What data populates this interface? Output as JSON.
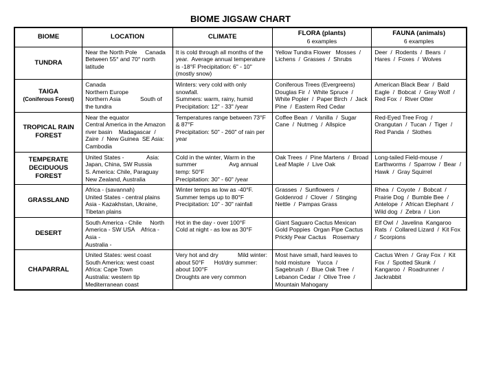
{
  "title": "BIOME JIGSAW CHART",
  "headers": {
    "biome": "BIOME",
    "location": "LOCATION",
    "climate": "CLIMATE",
    "flora": "FLORA (plants)",
    "flora_sub": "6 examples",
    "fauna": "FAUNA (animals)",
    "fauna_sub": "6 examples"
  },
  "rows": [
    {
      "biome": "TUNDRA",
      "biome_sub": "",
      "location": "Near the North Pole     Canada       Between 55° and 70° north latitude",
      "climate": "It is cold through all months of the year.  Average annual temperature is -18°F Precipitation: 6\" - 10\" (mostly snow)",
      "flora": "Yellow Tundra Flower   Mosses  /  Lichens  /  Grasses  /  Shrubs",
      "fauna": "Deer  /  Rodents  /  Bears  /  Hares  /  Foxes  /  Wolves"
    },
    {
      "biome": "TAIGA",
      "biome_sub": "(Coniferous Forest)",
      "location": "Canada\nNorthern Europe\nNorthern Asia            South of the tundra",
      "climate": "Winters: very cold with only snowfall.\nSummers: warm, rainy, humid\nPrecipitation: 12\" - 33\" /year",
      "flora": "Coniferous Trees (Evergreens) Douglas Fir  /  White Spruce  /  White Popler  /  Paper Birch  /  Jack Pine  /  Eastern Red Cedar",
      "fauna": "American Black Bear  /  Bald Eagle  /  Bobcat  /  Gray Wolf  /  Red Fox  /  River Otter"
    },
    {
      "biome": "TROPICAL RAIN FOREST",
      "biome_sub": "",
      "location": "Near the equator\nCentral America in the Amazon river basin    Madagascar  /  Zaire  /  New Guinea  SE Asia: Cambodia",
      "climate": "Temperatures range between 73°F & 87°F\nPrecipitation: 50\" - 260\" of rain per year",
      "flora": "Coffee Bean  /  Vanilla  /  Sugar Cane  /  Nutmeg  /  Allspice",
      "fauna": "Red-Eyed Tree Frog  /  Orangutan  /  Tucan  /  Tiger  /  Red Panda  /  Slothes"
    },
    {
      "biome": "TEMPERATE DECIDUOUS FOREST",
      "biome_sub": "",
      "location": "United States -              Asia: Japan, China, SW Russia\nS. America: Chile, Paraguay\nNew Zealand, Australia",
      "climate": "Cold in the winter, Warm in the summer                    Avg annual temp: 50°F\nPrecipitation: 30\" - 60\" /year",
      "flora": "Oak Trees  /  Pine Martens  /  Broad Leaf Maple  /  Live Oak",
      "fauna": "Long-tailed Field-mouse  /  Earthworms  /  Sparrow  /  Bear  /  Hawk  /  Gray Squirrel"
    },
    {
      "biome": "GRASSLAND",
      "biome_sub": "",
      "location": "Africa - (savannah)\nUnited States - central plains\nAsia - Kazakhstan, Ukraine, Tibetan plains",
      "climate": "Winter temps as low as -40°F. Summer temps up to 80°F\nPrecipitation: 10\" - 30\" rainfall",
      "flora": "Grasses  /  Sunflowers  /  Goldenrod  /  Clover  /  Stinging Nettle  /  Pampas Grass",
      "fauna": "Rhea  /  Coyote  /  Bobcat  /  Prairie Dog  /  Bumble Bee  /  Antelope  /  African Elephant  /  Wild dog  /  Zebra  /  Lion"
    },
    {
      "biome": "DESERT",
      "biome_sub": "",
      "location": "South America - Chile     North America - SW USA    Africa - Asia -\nAustralia -",
      "climate": "Hot in the day - over 100°F\nCold at night - as low as 30°F",
      "flora": "Giant Saguaro Cactus Mexican Gold Poppies  Organ Pipe Cactus        Prickly Pear Cactus    Rosemary",
      "fauna": "Elf Owl  /  Javelina  Kangaroo Rats  /  Collared Lizard  /  Kit Fox  /  Scorpions"
    },
    {
      "biome": "CHAPARRAL",
      "biome_sub": "",
      "location": "United States: west coast\nSouth America: west coast\nAfrica: Cape Town\nAustralia: western tip\nMediterranean coast",
      "climate": "Very hot and dry            Mild winter: about 50°F      Hot/dry summer: about 100°F\nDroughts are very common",
      "flora": "Most have small, hard leaves to hold moisture    Yucca  /  Sagebrush  /  Blue Oak Tree  /  Lebanon Cedar  /  Olive Tree  /  Mountain Mahogany",
      "fauna": "Cactus Wren  /  Gray Fox  /  Kit Fox  /  Spotted Skunk  /  Kangaroo  /  Roadrunner  /  Jackrabbit"
    }
  ]
}
